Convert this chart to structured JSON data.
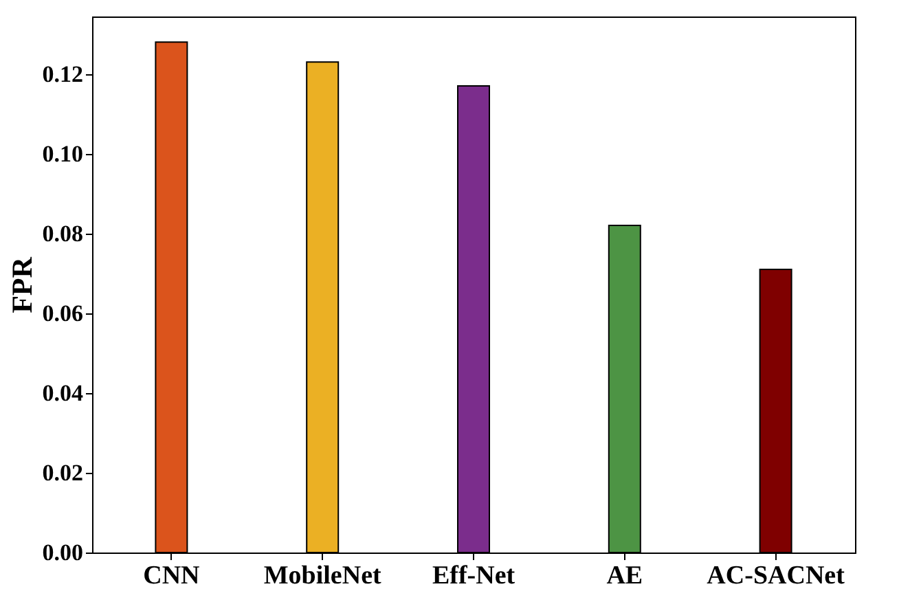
{
  "chart_data": {
    "type": "bar",
    "ylabel": "FPR",
    "categories": [
      "CNN",
      "MobileNet",
      "Eff-Net",
      "AE",
      "AC-SACNet"
    ],
    "values": [
      0.128,
      0.123,
      0.117,
      0.082,
      0.071
    ],
    "colors": [
      "#db541c",
      "#ebb024",
      "#7b2d8c",
      "#4d9444",
      "#7f0000"
    ],
    "ylim": [
      0,
      0.1344
    ],
    "yticks": [
      {
        "value": 0,
        "label": "0.00"
      },
      {
        "value": 0.02,
        "label": "0.02"
      },
      {
        "value": 0.04,
        "label": "0.04"
      },
      {
        "value": 0.06,
        "label": "0.06"
      },
      {
        "value": 0.08,
        "label": "0.08"
      },
      {
        "value": 0.1,
        "label": "0.10"
      },
      {
        "value": 0.12,
        "label": "0.12"
      }
    ],
    "grid": false,
    "legend": false
  }
}
